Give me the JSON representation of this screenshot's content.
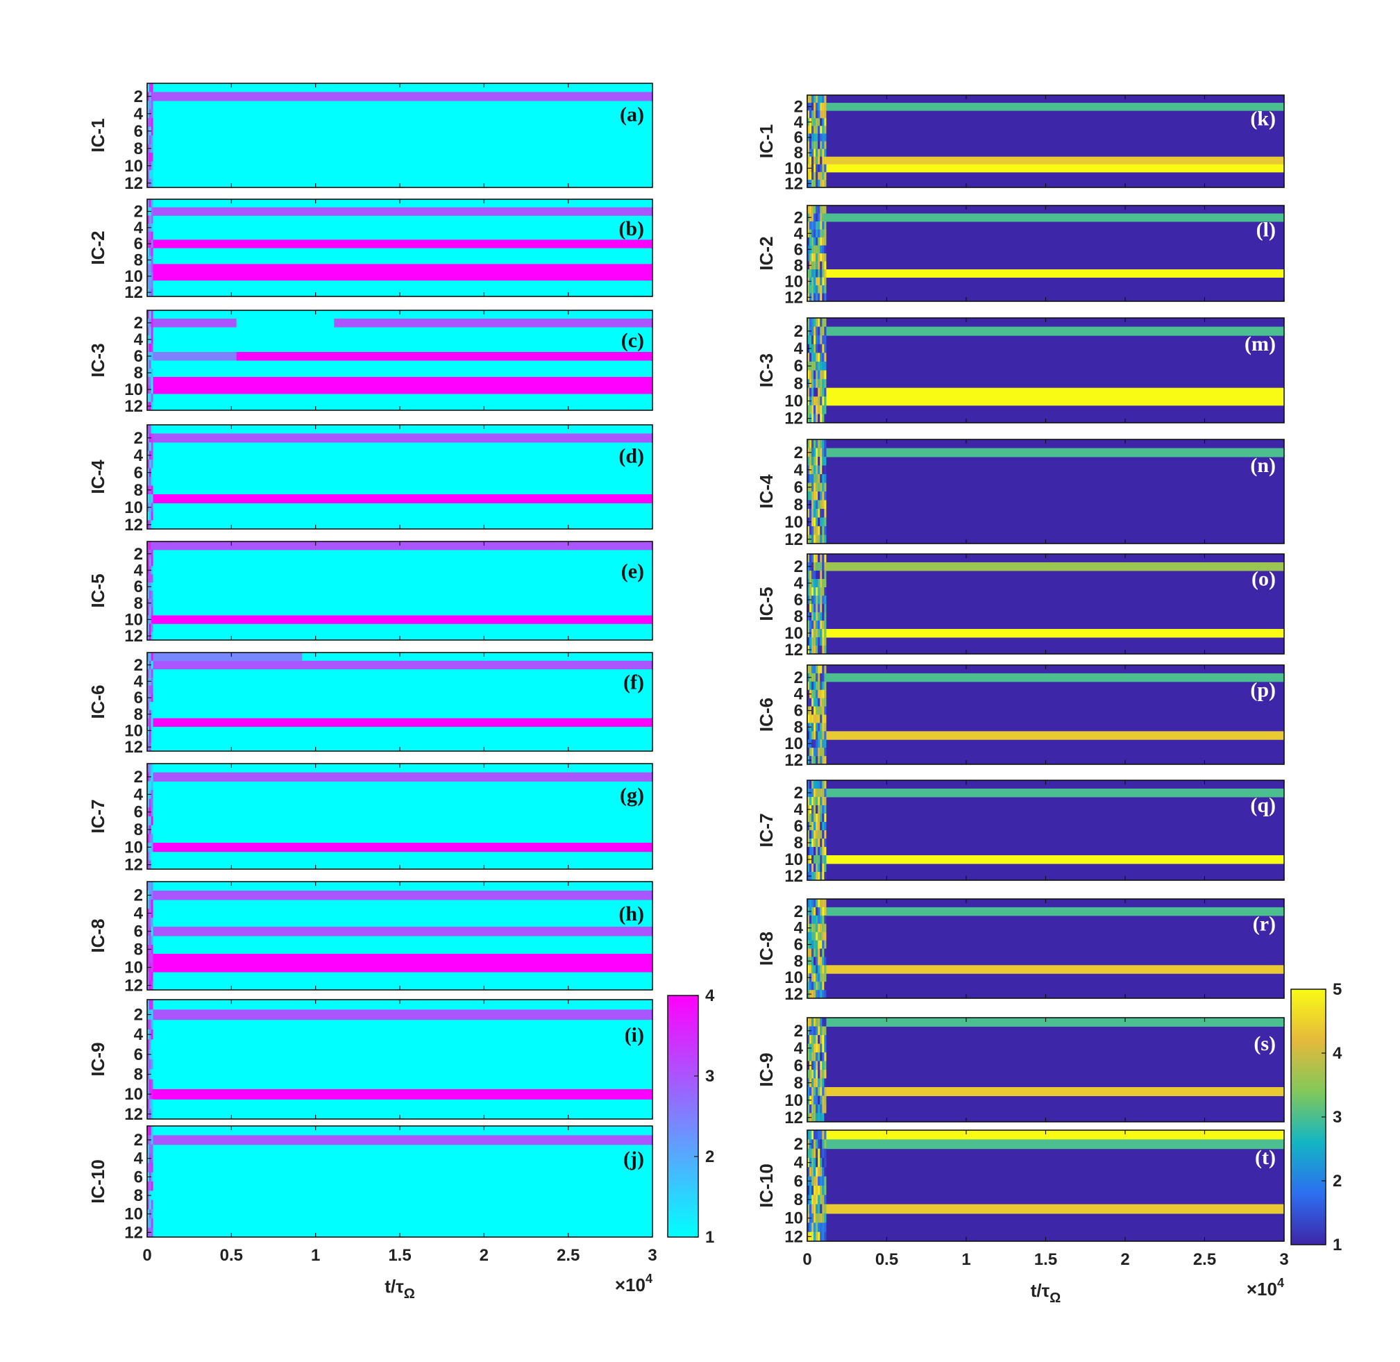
{
  "chart_data": [
    {
      "type": "heatmap",
      "name": "left-column",
      "xlabel": "t/τ",
      "xlabel_sub": "Ω",
      "x_exponent": "×10",
      "x_exponent_power": "4",
      "x_ticks": [
        0,
        0.5,
        1,
        1.5,
        2,
        2.5,
        3
      ],
      "x_tick_labels": [
        "0",
        "0.5",
        "1",
        "1.5",
        "2",
        "2.5",
        "3"
      ],
      "xlim": [
        0,
        3
      ],
      "y_ticks": [
        2,
        4,
        6,
        8,
        10,
        12
      ],
      "ylim": [
        1,
        12
      ],
      "colorbar": {
        "range": [
          1,
          4
        ],
        "ticks": [
          1,
          2,
          3,
          4
        ],
        "colors": [
          "#00ffff",
          "#ff00ff"
        ]
      },
      "panels": [
        {
          "ylabel": "IC-1",
          "tag": "(a)",
          "bands": [
            [
              2,
              3
            ]
          ],
          "partial_bands": []
        },
        {
          "ylabel": "IC-2",
          "tag": "(b)",
          "bands": [
            [
              2,
              3
            ],
            [
              6,
              4
            ],
            [
              9,
              4
            ],
            [
              10,
              4
            ]
          ],
          "partial_bands": []
        },
        {
          "ylabel": "IC-3",
          "tag": "(c)",
          "bands": [
            [
              6,
              4
            ],
            [
              9,
              4
            ],
            [
              10,
              4
            ]
          ],
          "partial_bands": [
            [
              2,
              0,
              0.53,
              3
            ],
            [
              2,
              1.11,
              3,
              3
            ],
            [
              6,
              0,
              0.53,
              2.5
            ]
          ]
        },
        {
          "ylabel": "IC-4",
          "tag": "(d)",
          "bands": [
            [
              2,
              3
            ],
            [
              9,
              4
            ]
          ],
          "partial_bands": []
        },
        {
          "ylabel": "IC-5",
          "tag": "(e)",
          "bands": [
            [
              1,
              3
            ],
            [
              10,
              4
            ]
          ],
          "partial_bands": []
        },
        {
          "ylabel": "IC-6",
          "tag": "(f)",
          "bands": [
            [
              2,
              3
            ],
            [
              9,
              4
            ]
          ],
          "partial_bands": [
            [
              1,
              0,
              0.92,
              2.4
            ]
          ]
        },
        {
          "ylabel": "IC-7",
          "tag": "(g)",
          "bands": [
            [
              2,
              3
            ],
            [
              10,
              4
            ]
          ],
          "partial_bands": []
        },
        {
          "ylabel": "IC-8",
          "tag": "(h)",
          "bands": [
            [
              2,
              3
            ],
            [
              6,
              3
            ],
            [
              9,
              4
            ],
            [
              10,
              4
            ]
          ],
          "partial_bands": []
        },
        {
          "ylabel": "IC-9",
          "tag": "(i)",
          "bands": [
            [
              2,
              3
            ],
            [
              10,
              4
            ]
          ],
          "partial_bands": []
        },
        {
          "ylabel": "IC-10",
          "tag": "(j)",
          "bands": [
            [
              2,
              3
            ]
          ],
          "partial_bands": []
        }
      ],
      "background_value": 1
    },
    {
      "type": "heatmap",
      "name": "right-column",
      "xlabel": "t/τ",
      "xlabel_sub": "Ω",
      "x_exponent": "×10",
      "x_exponent_power": "4",
      "x_ticks": [
        0,
        0.5,
        1,
        1.5,
        2,
        2.5,
        3
      ],
      "x_tick_labels": [
        "0",
        "0.5",
        "1",
        "1.5",
        "2",
        "2.5",
        "3"
      ],
      "xlim": [
        0,
        3
      ],
      "y_ticks": [
        2,
        4,
        6,
        8,
        10,
        12
      ],
      "ylim": [
        1,
        12
      ],
      "colorbar": {
        "range": [
          1,
          5
        ],
        "ticks": [
          1,
          2,
          3,
          4,
          5
        ],
        "colors": [
          "#3e26a8",
          "#2d6ff0",
          "#13b5c4",
          "#82c85a",
          "#e5b93b",
          "#f9fb15"
        ]
      },
      "panels": [
        {
          "ylabel": "IC-1",
          "tag": "(k)",
          "bands": [
            [
              2,
              3
            ],
            [
              9,
              4.4
            ],
            [
              10,
              5
            ]
          ],
          "partial_bands": []
        },
        {
          "ylabel": "IC-2",
          "tag": "(l)",
          "bands": [
            [
              2,
              3
            ],
            [
              9,
              5
            ]
          ],
          "partial_bands": []
        },
        {
          "ylabel": "IC-3",
          "tag": "(m)",
          "bands": [
            [
              2,
              3
            ],
            [
              9,
              5
            ],
            [
              10,
              5
            ]
          ],
          "partial_bands": []
        },
        {
          "ylabel": "IC-4",
          "tag": "(n)",
          "bands": [
            [
              2,
              3
            ]
          ],
          "partial_bands": []
        },
        {
          "ylabel": "IC-5",
          "tag": "(o)",
          "bands": [
            [
              2,
              3.6
            ],
            [
              10,
              5
            ]
          ],
          "partial_bands": []
        },
        {
          "ylabel": "IC-6",
          "tag": "(p)",
          "bands": [
            [
              2,
              3
            ],
            [
              9,
              4.4
            ]
          ],
          "partial_bands": []
        },
        {
          "ylabel": "IC-7",
          "tag": "(q)",
          "bands": [
            [
              2,
              3
            ],
            [
              10,
              5
            ]
          ],
          "partial_bands": []
        },
        {
          "ylabel": "IC-8",
          "tag": "(r)",
          "bands": [
            [
              2,
              3
            ],
            [
              9,
              4.4
            ]
          ],
          "partial_bands": []
        },
        {
          "ylabel": "IC-9",
          "tag": "(s)",
          "bands": [
            [
              1,
              3
            ],
            [
              9,
              4.4
            ]
          ],
          "partial_bands": []
        },
        {
          "ylabel": "IC-10",
          "tag": "(t)",
          "bands": [
            [
              1,
              5
            ],
            [
              2,
              3
            ],
            [
              9,
              4.4
            ]
          ],
          "partial_bands": []
        }
      ],
      "background_value": 1
    }
  ]
}
